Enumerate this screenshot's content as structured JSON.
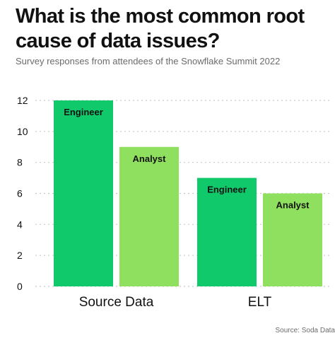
{
  "title": "What is the most common root cause of data issues?",
  "subtitle": "Survey responses from attendees of the Snowflake Summit 2022",
  "source": "Source: Soda Data",
  "colors": {
    "Engineer": "#10c96b",
    "Analyst": "#8fe05e",
    "grid": "#c9c9c9"
  },
  "chart_data": {
    "type": "bar",
    "categories": [
      "Source Data",
      "ELT"
    ],
    "series": [
      {
        "name": "Engineer",
        "values": [
          12,
          7
        ]
      },
      {
        "name": "Analyst",
        "values": [
          9,
          6
        ]
      }
    ],
    "ylim": [
      0,
      12
    ],
    "yticks": [
      "0",
      "2",
      "4",
      "6",
      "8",
      "10",
      "12"
    ],
    "grid": true,
    "legend": "labels inside bars"
  }
}
